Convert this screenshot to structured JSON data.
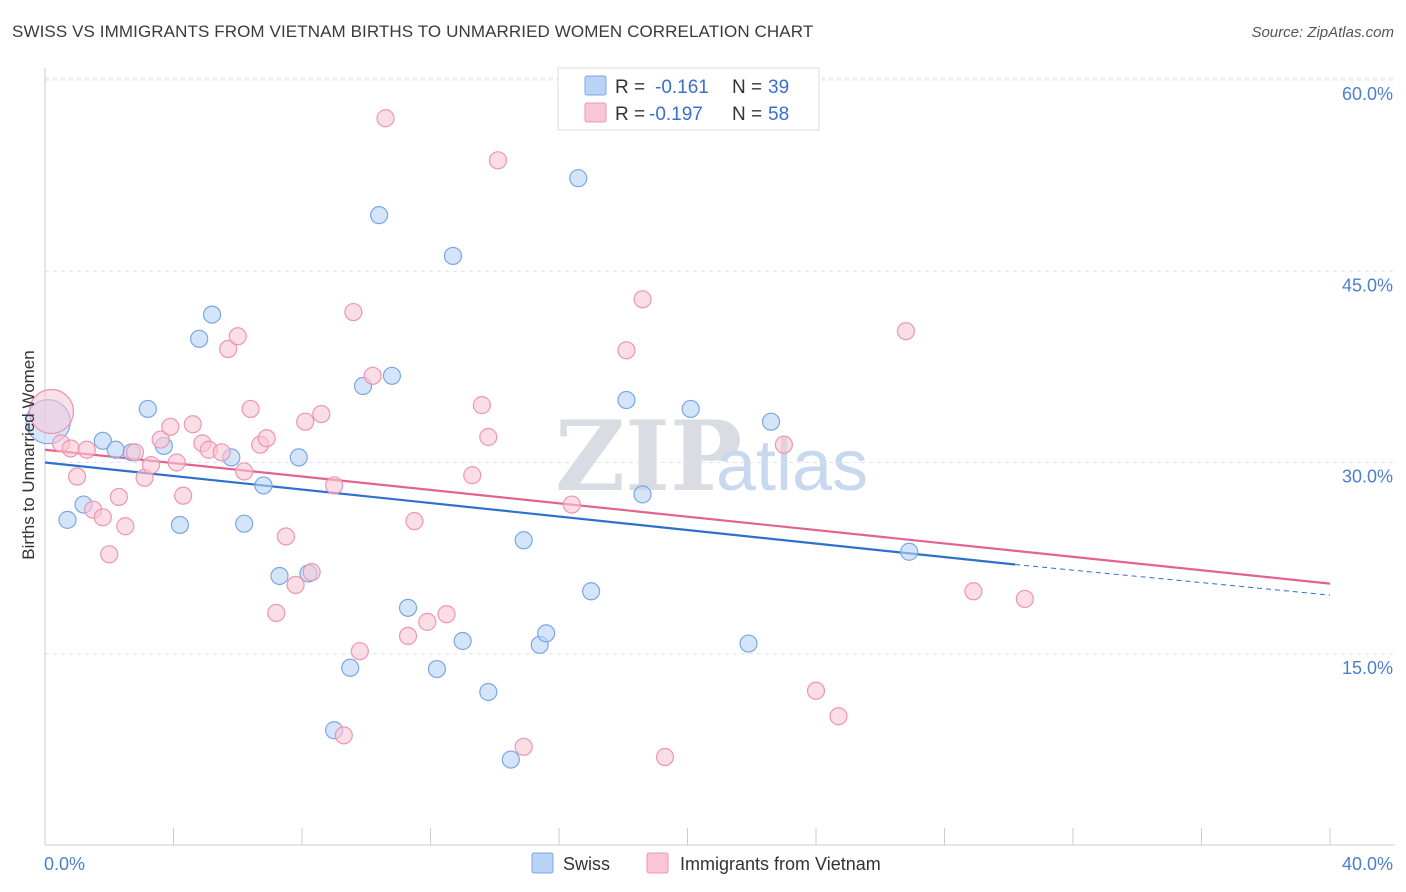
{
  "title": "SWISS VS IMMIGRANTS FROM VIETNAM BIRTHS TO UNMARRIED WOMEN CORRELATION CHART",
  "source": "Source: ZipAtlas.com",
  "watermark": {
    "zip": "ZIP",
    "atlas": "atlas"
  },
  "colors": {
    "swiss_fill": "#b9d3f5",
    "swiss_stroke": "#7aa6e6",
    "swiss_line": "#2e6fd0",
    "vietnam_fill": "#f8c6d6",
    "vietnam_stroke": "#ee95b2",
    "vietnam_line": "#e4628e",
    "grid": "#dde3ea",
    "tick_text": "#4a7fd0"
  },
  "legend": {
    "rows": [
      {
        "r_label": "R =",
        "r_value": "-0.161",
        "n_label": "N =",
        "n_value": "39"
      },
      {
        "r_label": "R =",
        "r_value": "-0.197",
        "n_label": "N =",
        "n_value": "58"
      }
    ]
  },
  "chart_data": {
    "type": "scatter",
    "title": "SWISS VS IMMIGRANTS FROM VIETNAM BIRTHS TO UNMARRIED WOMEN CORRELATION CHART",
    "xlabel": "",
    "ylabel": "Births to Unmarried Women",
    "xlim": [
      0,
      40
    ],
    "ylim": [
      0,
      62
    ],
    "x_tick_labels": [
      "0.0%",
      "40.0%"
    ],
    "y_ticks": [
      15,
      30,
      45,
      60
    ],
    "y_tick_labels": [
      "15.0%",
      "30.0%",
      "45.0%",
      "60.0%"
    ],
    "grid": true,
    "legend_position": "top-center",
    "series": [
      {
        "name": "Swiss",
        "r": -0.161,
        "n": 39,
        "trend": {
          "x0": 0,
          "y0": 30.0,
          "x1": 30.2,
          "y1": 22.0,
          "dash_to_x": 40,
          "dash_to_y": 19.6
        },
        "points": [
          [
            0.1,
            33.2
          ],
          [
            0.7,
            25.5
          ],
          [
            1.2,
            26.7
          ],
          [
            1.8,
            31.7
          ],
          [
            2.2,
            31.0
          ],
          [
            2.7,
            30.8
          ],
          [
            3.2,
            34.2
          ],
          [
            3.7,
            31.3
          ],
          [
            4.2,
            25.1
          ],
          [
            4.8,
            39.7
          ],
          [
            5.2,
            41.6
          ],
          [
            5.8,
            30.4
          ],
          [
            6.2,
            25.2
          ],
          [
            6.8,
            28.2
          ],
          [
            7.3,
            21.1
          ],
          [
            7.9,
            30.4
          ],
          [
            8.2,
            21.3
          ],
          [
            9.0,
            9.0
          ],
          [
            9.5,
            13.9
          ],
          [
            9.9,
            36.0
          ],
          [
            10.4,
            49.4
          ],
          [
            10.8,
            36.8
          ],
          [
            11.3,
            18.6
          ],
          [
            12.2,
            13.8
          ],
          [
            12.7,
            46.2
          ],
          [
            13.0,
            16.0
          ],
          [
            13.8,
            12.0
          ],
          [
            14.5,
            6.7
          ],
          [
            14.9,
            23.9
          ],
          [
            15.4,
            15.7
          ],
          [
            15.6,
            16.6
          ],
          [
            16.6,
            52.3
          ],
          [
            17.0,
            19.9
          ],
          [
            18.1,
            34.9
          ],
          [
            18.6,
            27.5
          ],
          [
            20.1,
            34.2
          ],
          [
            21.9,
            15.8
          ],
          [
            22.6,
            33.2
          ],
          [
            26.9,
            23.0
          ]
        ]
      },
      {
        "name": "Immigrants from Vietnam",
        "r": -0.197,
        "n": 58,
        "trend": {
          "x0": 0,
          "y0": 31.0,
          "x1": 40,
          "y1": 20.5
        },
        "points": [
          [
            0.2,
            34.0
          ],
          [
            0.5,
            31.5
          ],
          [
            0.8,
            31.1
          ],
          [
            1.0,
            28.9
          ],
          [
            1.3,
            31.0
          ],
          [
            1.5,
            26.3
          ],
          [
            1.8,
            25.7
          ],
          [
            2.0,
            22.8
          ],
          [
            2.3,
            27.3
          ],
          [
            2.5,
            25.0
          ],
          [
            2.8,
            30.8
          ],
          [
            3.1,
            28.8
          ],
          [
            3.3,
            29.8
          ],
          [
            3.6,
            31.8
          ],
          [
            3.9,
            32.8
          ],
          [
            4.1,
            30.0
          ],
          [
            4.3,
            27.4
          ],
          [
            4.6,
            33.0
          ],
          [
            4.9,
            31.5
          ],
          [
            5.1,
            31.0
          ],
          [
            5.5,
            30.8
          ],
          [
            5.7,
            38.9
          ],
          [
            6.0,
            39.9
          ],
          [
            6.2,
            29.3
          ],
          [
            6.4,
            34.2
          ],
          [
            6.7,
            31.4
          ],
          [
            6.9,
            31.9
          ],
          [
            7.2,
            18.2
          ],
          [
            7.5,
            24.2
          ],
          [
            7.8,
            20.4
          ],
          [
            8.1,
            33.2
          ],
          [
            8.3,
            21.4
          ],
          [
            8.6,
            33.8
          ],
          [
            9.0,
            28.2
          ],
          [
            9.3,
            8.6
          ],
          [
            9.6,
            41.8
          ],
          [
            9.8,
            15.2
          ],
          [
            10.2,
            36.8
          ],
          [
            10.6,
            57.0
          ],
          [
            11.3,
            16.4
          ],
          [
            11.5,
            25.4
          ],
          [
            11.9,
            17.5
          ],
          [
            12.5,
            18.1
          ],
          [
            13.3,
            29.0
          ],
          [
            13.6,
            34.5
          ],
          [
            13.8,
            32.0
          ],
          [
            14.1,
            53.7
          ],
          [
            14.9,
            7.7
          ],
          [
            16.4,
            26.7
          ],
          [
            18.1,
            38.8
          ],
          [
            18.6,
            42.8
          ],
          [
            19.3,
            6.9
          ],
          [
            23.0,
            31.4
          ],
          [
            24.0,
            12.1
          ],
          [
            24.7,
            10.1
          ],
          [
            26.8,
            40.3
          ],
          [
            28.9,
            19.9
          ],
          [
            30.5,
            19.3
          ]
        ]
      }
    ]
  },
  "bottom_legend": [
    {
      "label": "Swiss"
    },
    {
      "label": "Immigrants from Vietnam"
    }
  ]
}
